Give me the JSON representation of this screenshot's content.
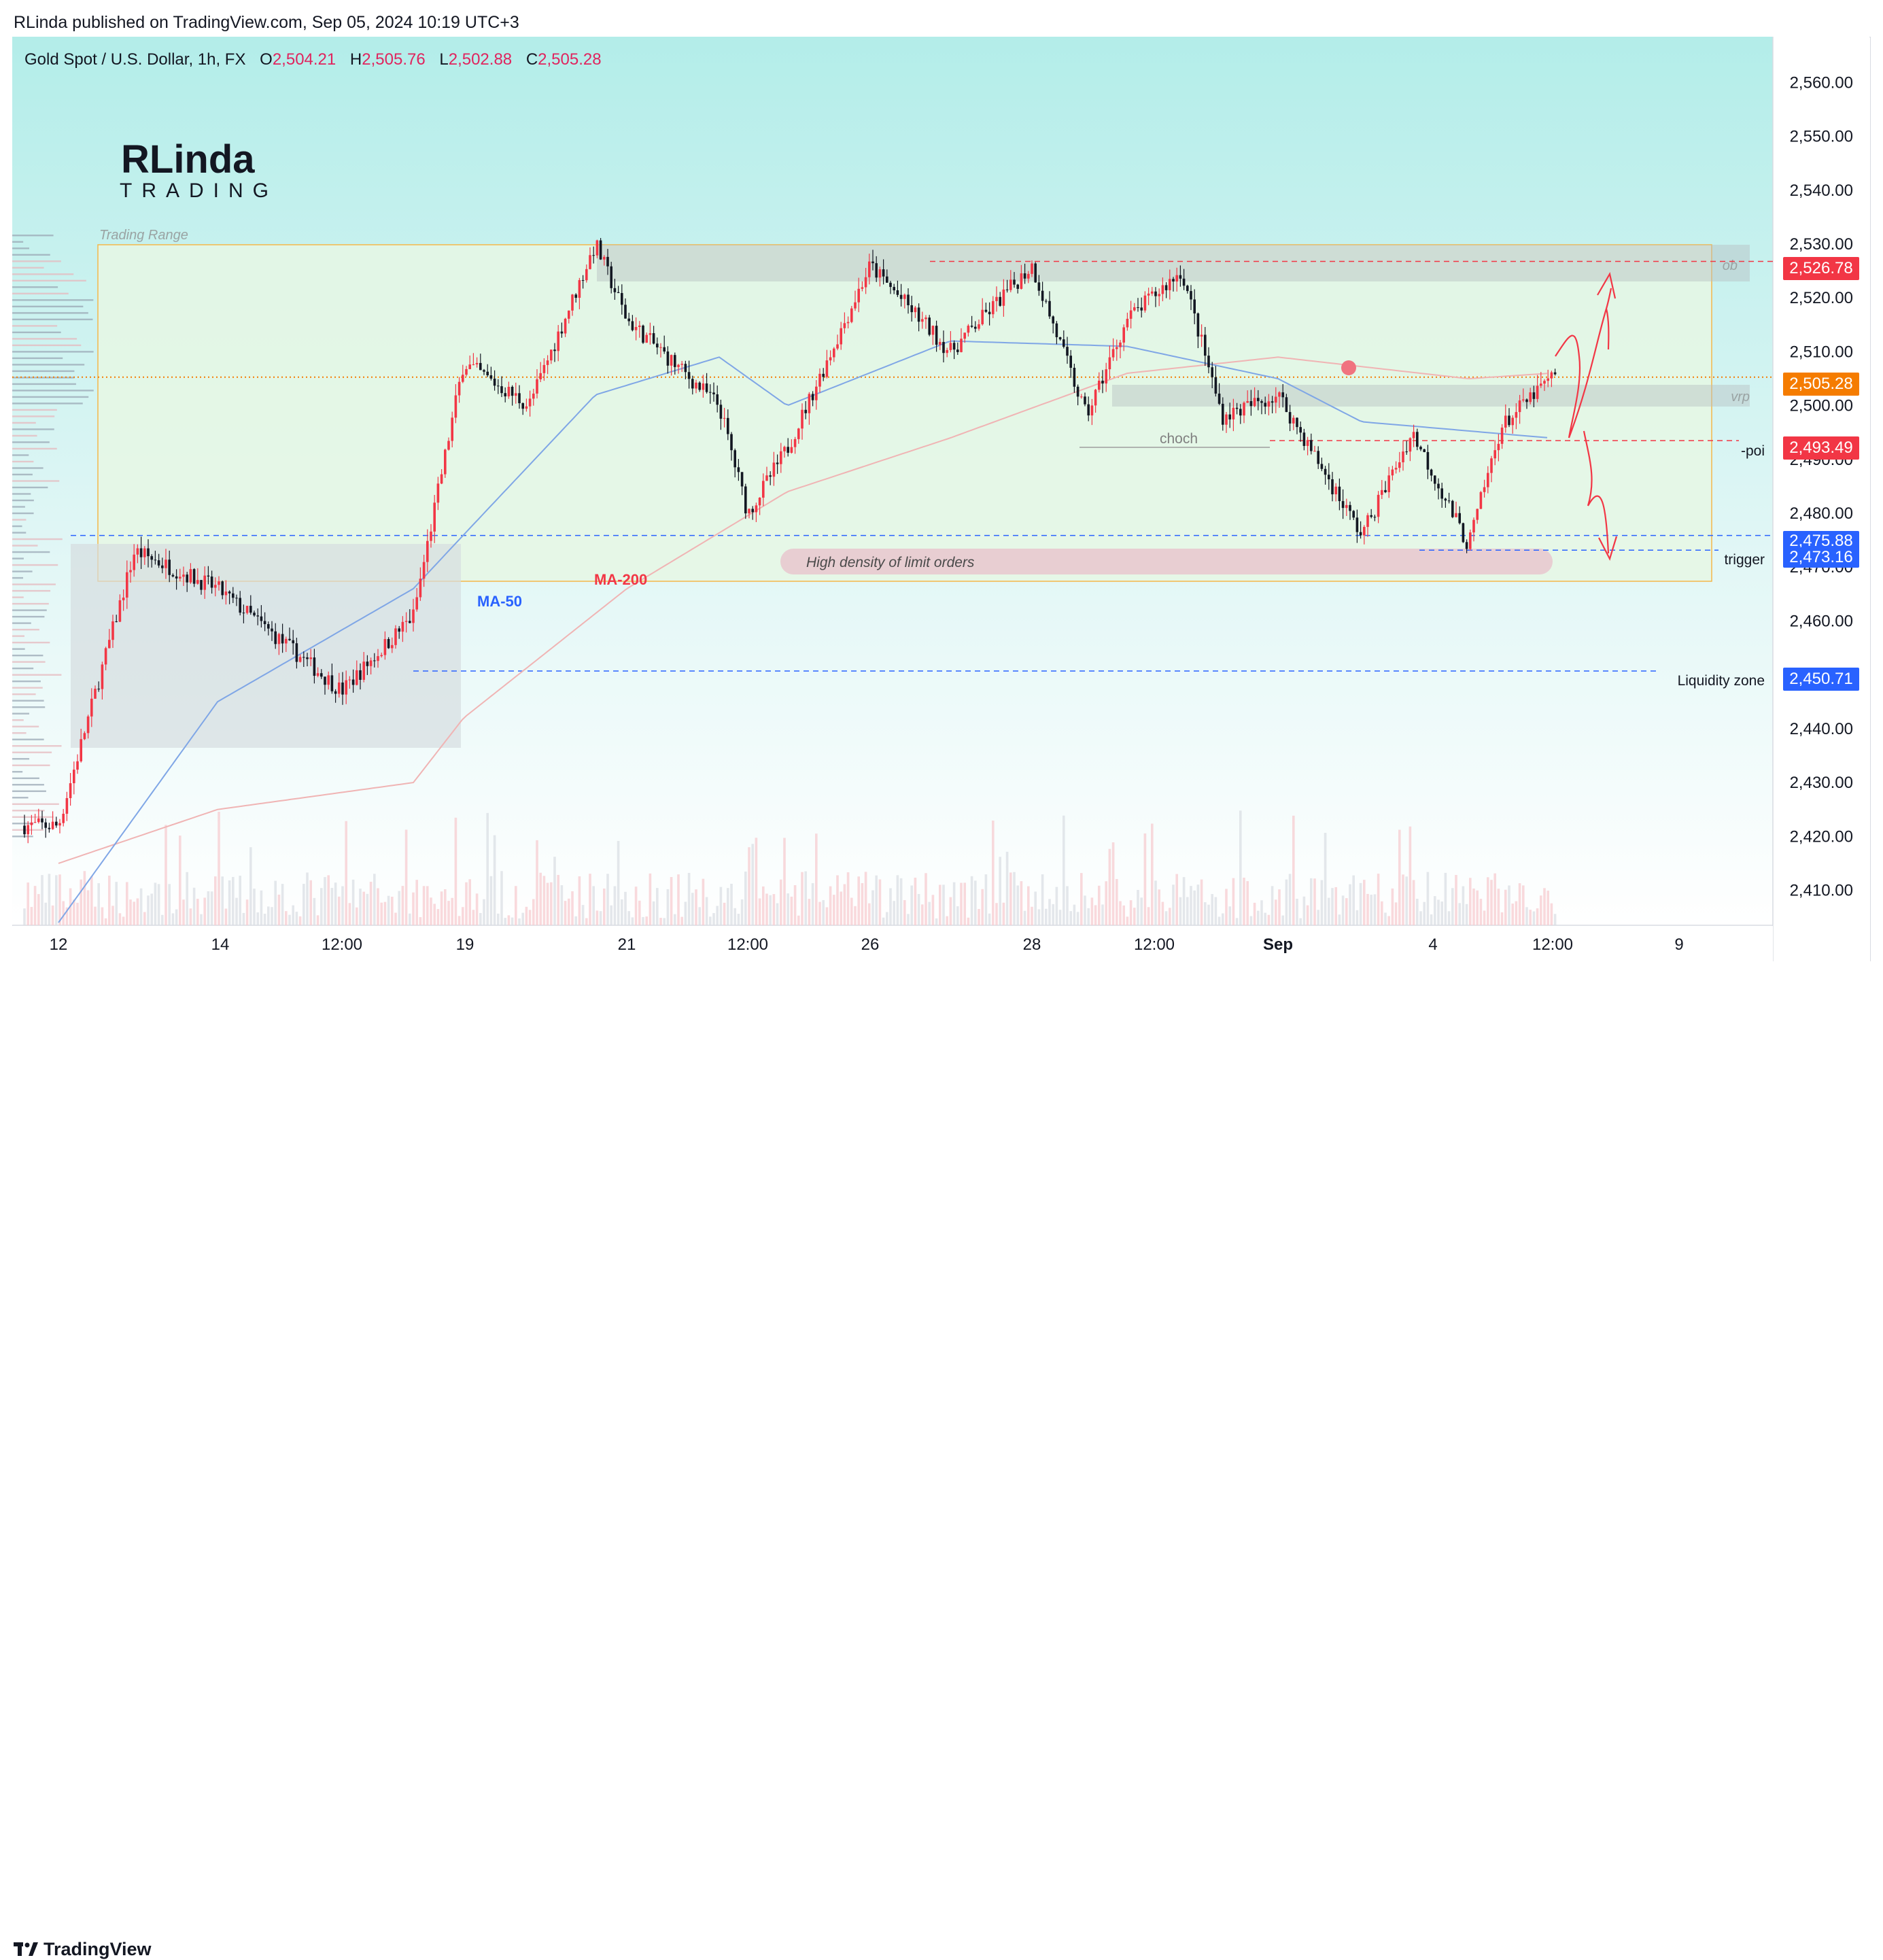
{
  "publisher": "RLinda published on TradingView.com, Sep 05, 2024 10:19 UTC+3",
  "legend": {
    "symbol": "Gold Spot / U.S. Dollar, 1h, FX",
    "o_label": "O",
    "o_value": "2,504.21",
    "h_label": "H",
    "h_value": "2,505.76",
    "l_label": "L",
    "l_value": "2,502.88",
    "c_label": "C",
    "c_value": "2,505.28"
  },
  "brand": {
    "name_top": "RLinda",
    "name_bottom": "TRADING"
  },
  "footer": {
    "logo_text": "TradingView"
  },
  "annotations": {
    "trading_range": "Trading Range",
    "ob": "ob",
    "vrp": "vrp",
    "choch": "choch",
    "poi": "-poi",
    "trigger": "trigger",
    "liquidity_zone": "Liquidity zone",
    "ma50": "MA-50",
    "ma200": "MA-200",
    "limit_orders": "High density of limit orders"
  },
  "price_labels": {
    "ob_level": "2,526.78",
    "last_price": "2,505.28",
    "poi_level": "2,493.49",
    "range_low": "2,475.88",
    "trigger_level": "2,473.16",
    "liquidity_level": "2,450.71"
  },
  "colors": {
    "bg_top": "#b3ede9",
    "bg_bottom": "#ffffff",
    "candle_up": "#f23645",
    "candle_down": "#131722",
    "ma50": "#7fa6e6",
    "ma200": "#f0b4b4",
    "range_fill": "#e6f7e4",
    "range_border": "#f4b74a",
    "red_label": "#f23645",
    "blue_label": "#2962ff",
    "orange_label": "#f57c00"
  },
  "chart_data": {
    "type": "candlestick",
    "symbol": "XAUUSD",
    "interval": "1h",
    "x_tick_labels": [
      "12",
      "14",
      "12:00",
      "19",
      "21",
      "12:00",
      "26",
      "28",
      "12:00",
      "Sep",
      "4",
      "12:00",
      "9"
    ],
    "y_tick_labels": [
      "2,560.00",
      "2,550.00",
      "2,540.00",
      "2,530.00",
      "2,520.00",
      "2,510.00",
      "2,500.00",
      "2,490.00",
      "2,480.00",
      "2,470.00",
      "2,460.00",
      "2,450.00",
      "2,440.00",
      "2,430.00",
      "2,420.00",
      "2,410.00"
    ],
    "ylim": [
      2403.5,
      2568.5
    ],
    "ohlc_last": {
      "open": 2504.21,
      "high": 2505.76,
      "low": 2502.88,
      "close": 2505.28
    },
    "path_anchors": [
      {
        "x": "12",
        "price": 2422
      },
      {
        "x": "13",
        "price": 2473
      },
      {
        "x": "14",
        "price": 2466
      },
      {
        "x": "14 12:00",
        "price": 2447
      },
      {
        "x": "16",
        "price": 2461
      },
      {
        "x": "19",
        "price": 2508
      },
      {
        "x": "20",
        "price": 2500
      },
      {
        "x": "20 12:00",
        "price": 2530
      },
      {
        "x": "21",
        "price": 2516
      },
      {
        "x": "22",
        "price": 2500
      },
      {
        "x": "22 12:00",
        "price": 2480
      },
      {
        "x": "23",
        "price": 2492
      },
      {
        "x": "26",
        "price": 2526
      },
      {
        "x": "27",
        "price": 2510
      },
      {
        "x": "28",
        "price": 2526
      },
      {
        "x": "28 12:00",
        "price": 2498
      },
      {
        "x": "29",
        "price": 2516
      },
      {
        "x": "30",
        "price": 2525
      },
      {
        "x": "30 12:00",
        "price": 2498
      },
      {
        "x": "Sep",
        "price": 2502
      },
      {
        "x": "3",
        "price": 2476
      },
      {
        "x": "3 12:00",
        "price": 2495
      },
      {
        "x": "4",
        "price": 2474
      },
      {
        "x": "4 12:00",
        "price": 2496
      },
      {
        "x": "5",
        "price": 2505
      }
    ],
    "ma50_anchors": [
      {
        "x": "12",
        "price": 2404
      },
      {
        "x": "14",
        "price": 2445
      },
      {
        "x": "16",
        "price": 2466
      },
      {
        "x": "19",
        "price": 2476
      },
      {
        "x": "20 12:00",
        "price": 2502
      },
      {
        "x": "22",
        "price": 2509
      },
      {
        "x": "23",
        "price": 2500
      },
      {
        "x": "27",
        "price": 2512
      },
      {
        "x": "29",
        "price": 2511
      },
      {
        "x": "Sep",
        "price": 2505
      },
      {
        "x": "3",
        "price": 2497
      },
      {
        "x": "5",
        "price": 2494
      }
    ],
    "ma200_anchors": [
      {
        "x": "12",
        "price": 2415
      },
      {
        "x": "14",
        "price": 2425
      },
      {
        "x": "16",
        "price": 2430
      },
      {
        "x": "19",
        "price": 2442
      },
      {
        "x": "21",
        "price": 2466
      },
      {
        "x": "23",
        "price": 2484
      },
      {
        "x": "27",
        "price": 2494
      },
      {
        "x": "29",
        "price": 2506
      },
      {
        "x": "Sep",
        "price": 2509
      },
      {
        "x": "4",
        "price": 2505
      },
      {
        "x": "5",
        "price": 2506
      }
    ],
    "levels": {
      "ob": 2526.78,
      "last": 2505.28,
      "poi": 2493.49,
      "range_low": 2475.88,
      "trigger": 2473.16,
      "liquidity": 2450.71
    },
    "zones": {
      "trading_range": [
        2475.88,
        2531.5
      ],
      "ob": [
        2524.0,
        2531.0
      ],
      "vrp": [
        2501.0,
        2504.5
      ],
      "consolidation_box": [
        2438.5,
        2475.5
      ],
      "limit_orders": [
        2471.0,
        2476.0
      ]
    },
    "choch_level": 2493.5,
    "grid": false
  }
}
